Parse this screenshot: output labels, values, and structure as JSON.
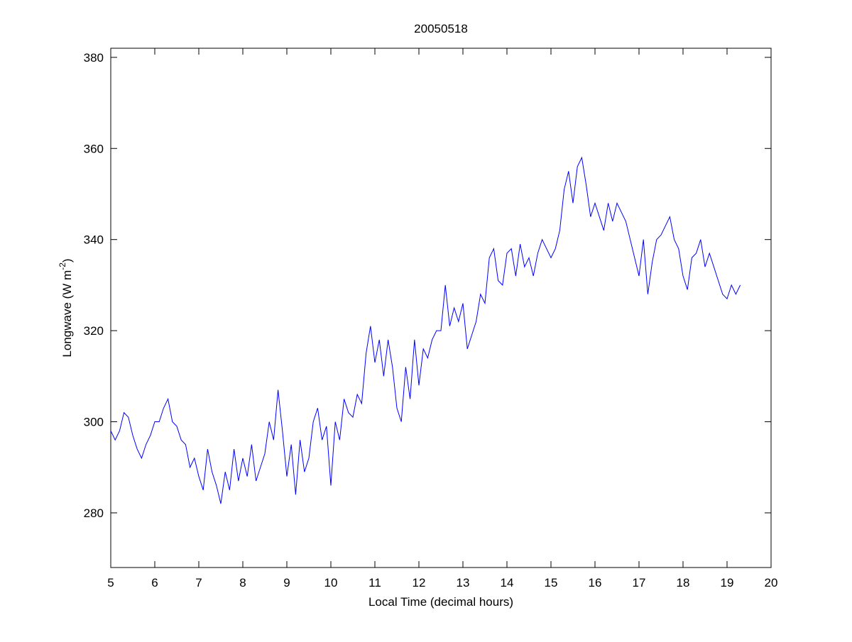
{
  "chart_data": {
    "type": "line",
    "title": "20050518",
    "x_label": "Local Time (decimal hours)",
    "y_label": [
      "Longwave (W m",
      "-2",
      ")"
    ],
    "xlim": [
      5,
      20
    ],
    "xticks": [
      5,
      6,
      7,
      8,
      9,
      10,
      11,
      12,
      13,
      14,
      15,
      16,
      17,
      18,
      19,
      20
    ],
    "ylim": [
      268,
      382
    ],
    "yticks": [
      280,
      300,
      320,
      340,
      360,
      380
    ],
    "grid": false,
    "x": [
      5.0,
      5.1,
      5.2,
      5.3,
      5.4,
      5.5,
      5.6,
      5.7,
      5.8,
      5.9,
      6.0,
      6.1,
      6.2,
      6.3,
      6.4,
      6.5,
      6.6,
      6.7,
      6.8,
      6.9,
      7.0,
      7.1,
      7.2,
      7.3,
      7.4,
      7.5,
      7.6,
      7.7,
      7.8,
      7.9,
      8.0,
      8.1,
      8.2,
      8.3,
      8.4,
      8.5,
      8.6,
      8.7,
      8.8,
      8.9,
      9.0,
      9.1,
      9.2,
      9.3,
      9.4,
      9.5,
      9.6,
      9.7,
      9.8,
      9.9,
      10.0,
      10.1,
      10.2,
      10.3,
      10.4,
      10.5,
      10.6,
      10.7,
      10.8,
      10.9,
      11.0,
      11.1,
      11.2,
      11.3,
      11.4,
      11.5,
      11.6,
      11.7,
      11.8,
      11.9,
      12.0,
      12.1,
      12.2,
      12.3,
      12.4,
      12.5,
      12.6,
      12.7,
      12.8,
      12.9,
      13.0,
      13.1,
      13.2,
      13.3,
      13.4,
      13.5,
      13.6,
      13.7,
      13.8,
      13.9,
      14.0,
      14.1,
      14.2,
      14.3,
      14.4,
      14.5,
      14.6,
      14.7,
      14.8,
      14.9,
      15.0,
      15.1,
      15.2,
      15.3,
      15.4,
      15.5,
      15.6,
      15.7,
      15.8,
      15.9,
      16.0,
      16.1,
      16.2,
      16.3,
      16.4,
      16.5,
      16.6,
      16.7,
      16.8,
      16.9,
      17.0,
      17.1,
      17.2,
      17.3,
      17.4,
      17.5,
      17.6,
      17.7,
      17.8,
      17.9,
      18.0,
      18.1,
      18.2,
      18.3,
      18.4,
      18.5,
      18.6,
      18.7,
      18.8,
      18.9,
      19.0,
      19.1,
      19.2,
      19.3
    ],
    "series": [
      {
        "color": "#0000ff",
        "values": [
          298,
          296,
          298,
          302,
          301,
          297,
          294,
          292,
          295,
          297,
          300,
          300,
          303,
          305,
          300,
          299,
          296,
          295,
          290,
          292,
          288,
          285,
          294,
          289,
          286,
          282,
          289,
          285,
          294,
          287,
          292,
          288,
          295,
          287,
          290,
          293,
          300,
          296,
          307,
          298,
          288,
          295,
          284,
          296,
          289,
          292,
          300,
          303,
          296,
          299,
          286,
          300,
          296,
          305,
          302,
          301,
          306,
          304,
          315,
          321,
          313,
          318,
          310,
          318,
          312,
          303,
          300,
          312,
          305,
          318,
          308,
          316,
          314,
          318,
          320,
          320,
          330,
          321,
          325,
          322,
          326,
          316,
          319,
          322,
          328,
          326,
          336,
          338,
          331,
          330,
          337,
          338,
          332,
          339,
          334,
          336,
          332,
          337,
          340,
          338,
          336,
          338,
          342,
          351,
          355,
          348,
          356,
          358,
          352,
          345,
          348,
          345,
          342,
          348,
          344,
          348,
          346,
          344,
          340,
          336,
          332,
          340,
          328,
          335,
          340,
          341,
          343,
          345,
          340,
          338,
          332,
          329,
          336,
          337,
          340,
          334,
          337,
          334,
          331,
          328,
          327,
          330,
          328,
          330
        ]
      }
    ]
  }
}
